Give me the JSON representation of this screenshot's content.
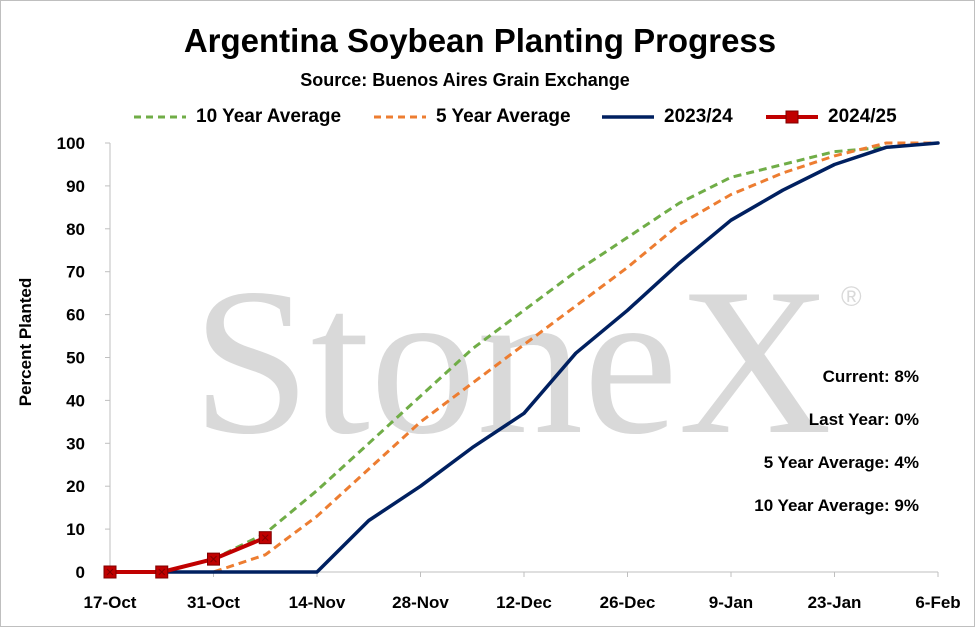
{
  "title": "Argentina Soybean Planting Progress",
  "subtitle": "Source: Buenos Aires Grain Exchange",
  "watermark": "StoneX",
  "watermark_mark": "®",
  "annotations": {
    "current": "Current: 8%",
    "last_year": "Last Year: 0%",
    "five_year": "5 Year Average: 4%",
    "ten_year": "10 Year Average: 9%"
  },
  "chart_data": {
    "type": "line",
    "title": "Argentina Soybean Planting Progress",
    "subtitle": "Source: Buenos Aires Grain Exchange",
    "xlabel": "",
    "ylabel": "Percent Planted",
    "x_tick_labels": [
      "17-Oct",
      "31-Oct",
      "14-Nov",
      "28-Nov",
      "12-Dec",
      "26-Dec",
      "9-Jan",
      "23-Jan",
      "6-Feb"
    ],
    "y_ticks": [
      0,
      10,
      20,
      30,
      40,
      50,
      60,
      70,
      80,
      90,
      100
    ],
    "ylim": [
      0,
      100
    ],
    "xlim": [
      "2024-10-17",
      "2025-02-06"
    ],
    "grid": false,
    "legend_position": "top",
    "series": [
      {
        "name": "10 Year Average",
        "color": "#70ad47",
        "style": "dashed",
        "points": [
          [
            "2024-10-17",
            0
          ],
          [
            "2024-10-24",
            0
          ],
          [
            "2024-10-31",
            3
          ],
          [
            "2024-11-07",
            9
          ],
          [
            "2024-11-14",
            19
          ],
          [
            "2024-11-21",
            30
          ],
          [
            "2024-11-28",
            41
          ],
          [
            "2024-12-05",
            52
          ],
          [
            "2024-12-12",
            61
          ],
          [
            "2024-12-19",
            70
          ],
          [
            "2024-12-26",
            78
          ],
          [
            "2025-01-02",
            86
          ],
          [
            "2025-01-09",
            92
          ],
          [
            "2025-01-16",
            95
          ],
          [
            "2025-01-23",
            98
          ],
          [
            "2025-01-30",
            99
          ],
          [
            "2025-02-06",
            100
          ]
        ]
      },
      {
        "name": "5 Year Average",
        "color": "#ed7d31",
        "style": "dashed",
        "points": [
          [
            "2024-10-17",
            0
          ],
          [
            "2024-10-24",
            0
          ],
          [
            "2024-10-31",
            0
          ],
          [
            "2024-11-07",
            4
          ],
          [
            "2024-11-14",
            13
          ],
          [
            "2024-11-21",
            24
          ],
          [
            "2024-11-28",
            35
          ],
          [
            "2024-12-05",
            44
          ],
          [
            "2024-12-12",
            53
          ],
          [
            "2024-12-19",
            62
          ],
          [
            "2024-12-26",
            71
          ],
          [
            "2025-01-02",
            81
          ],
          [
            "2025-01-09",
            88
          ],
          [
            "2025-01-16",
            93
          ],
          [
            "2025-01-23",
            97
          ],
          [
            "2025-01-30",
            100
          ],
          [
            "2025-02-06",
            100
          ]
        ]
      },
      {
        "name": "2023/24",
        "color": "#002060",
        "style": "solid",
        "points": [
          [
            "2024-10-17",
            0
          ],
          [
            "2024-10-24",
            0
          ],
          [
            "2024-10-31",
            0
          ],
          [
            "2024-11-07",
            0
          ],
          [
            "2024-11-14",
            0
          ],
          [
            "2024-11-21",
            12
          ],
          [
            "2024-11-28",
            20
          ],
          [
            "2024-12-05",
            29
          ],
          [
            "2024-12-12",
            37
          ],
          [
            "2024-12-19",
            51
          ],
          [
            "2024-12-26",
            61
          ],
          [
            "2025-01-02",
            72
          ],
          [
            "2025-01-09",
            82
          ],
          [
            "2025-01-16",
            89
          ],
          [
            "2025-01-23",
            95
          ],
          [
            "2025-01-30",
            99
          ],
          [
            "2025-02-06",
            100
          ]
        ]
      },
      {
        "name": "2024/25",
        "color": "#c00000",
        "style": "solid",
        "markers": true,
        "points": [
          [
            "2024-10-17",
            0
          ],
          [
            "2024-10-24",
            0
          ],
          [
            "2024-10-31",
            3
          ],
          [
            "2024-11-07",
            8
          ]
        ]
      }
    ]
  }
}
